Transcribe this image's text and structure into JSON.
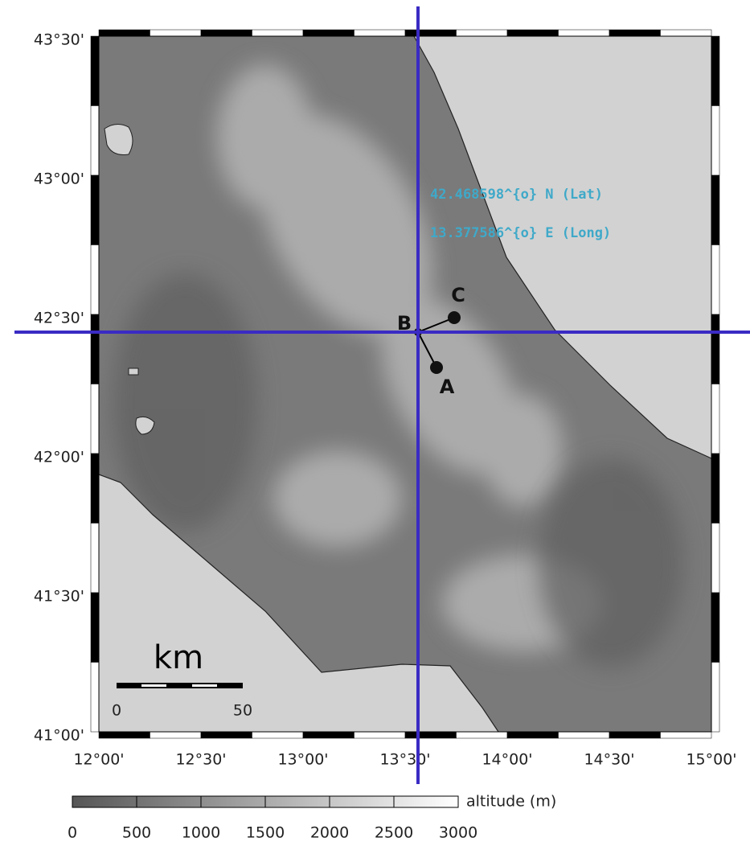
{
  "map": {
    "lat_labels": [
      "43°30'",
      "43°00'",
      "42°30'",
      "42°00'",
      "41°30'",
      "41°00'"
    ],
    "lon_labels": [
      "12°00'",
      "12°30'",
      "13°00'",
      "13°30'",
      "14°00'",
      "14°30'",
      "15°00'"
    ],
    "points": [
      {
        "label": "A"
      },
      {
        "label": "B"
      },
      {
        "label": "C"
      }
    ],
    "annotations": [
      "42.468598^{o} N (Lat)",
      "13.377586^{o} E (Long)"
    ],
    "scale_bar": {
      "unit": "km",
      "labels": [
        "0",
        "50"
      ]
    },
    "colorbar": {
      "label": "altitude (m)",
      "ticks": [
        0,
        500,
        1000,
        1500,
        2000,
        2500,
        3000
      ]
    }
  }
}
